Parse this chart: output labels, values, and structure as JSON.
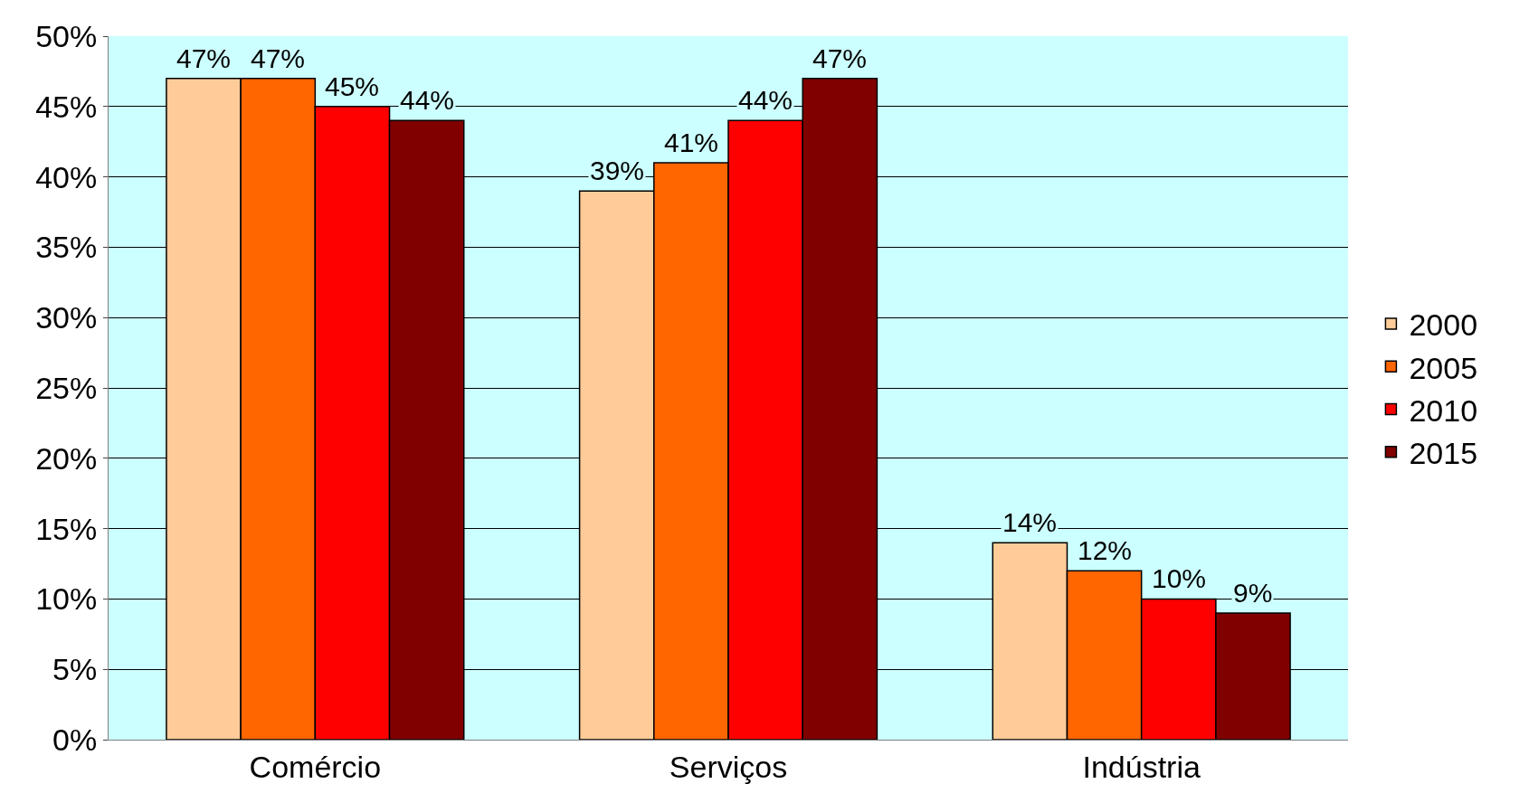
{
  "chart_data": {
    "type": "bar",
    "categories": [
      "Comércio",
      "Serviços",
      "Indústria"
    ],
    "series": [
      {
        "name": "2000",
        "color": "#ffcc99",
        "values": [
          47,
          39,
          14
        ],
        "value_labels": [
          "47%",
          "39%",
          "14%"
        ]
      },
      {
        "name": "2005",
        "color": "#ff6600",
        "values": [
          47,
          41,
          12
        ],
        "value_labels": [
          "47%",
          "41%",
          "12%"
        ]
      },
      {
        "name": "2010",
        "color": "#ff0000",
        "values": [
          45,
          44,
          10
        ],
        "value_labels": [
          "45%",
          "44%",
          "10%"
        ]
      },
      {
        "name": "2015",
        "color": "#800000",
        "values": [
          44,
          47,
          9
        ],
        "value_labels": [
          "44%",
          "47%",
          "9%"
        ]
      }
    ],
    "ylim": [
      0,
      50
    ],
    "yticks": [
      {
        "value": 0,
        "label": "0%"
      },
      {
        "value": 5,
        "label": "5%"
      },
      {
        "value": 10,
        "label": "10%"
      },
      {
        "value": 15,
        "label": "15%"
      },
      {
        "value": 20,
        "label": "20%"
      },
      {
        "value": 25,
        "label": "25%"
      },
      {
        "value": 30,
        "label": "30%"
      },
      {
        "value": 35,
        "label": "35%"
      },
      {
        "value": 40,
        "label": "40%"
      },
      {
        "value": 45,
        "label": "45%"
      },
      {
        "value": 50,
        "label": "50%"
      }
    ],
    "grid": "y",
    "legend": "right"
  }
}
